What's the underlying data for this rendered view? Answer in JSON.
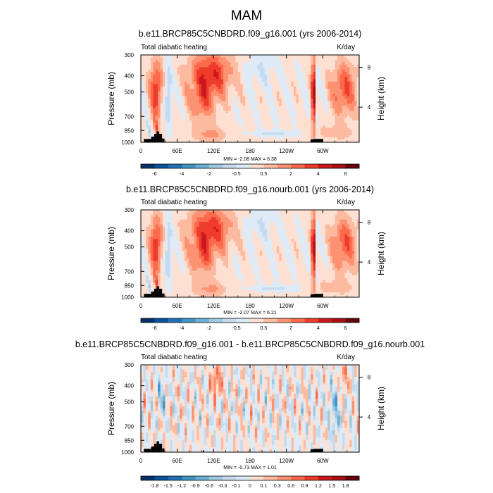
{
  "figure_title": "MAM",
  "chart_data": [
    {
      "type": "heatmap",
      "title": "b.e11.BRCP85C5CNBDRD.f09_g16.001 (yrs 2006-2014)",
      "left_label": "Total diabatic heating",
      "units": "K/day",
      "ylabel": "Pressure (mb)",
      "ylabel_right": "Height (km)",
      "x_ticks": [
        "0",
        "60E",
        "120E",
        "180",
        "120W",
        "60W"
      ],
      "x_tick_lon": [
        0,
        60,
        120,
        180,
        240,
        300
      ],
      "xlim": [
        0,
        360
      ],
      "y_ticks": [
        "300",
        "400",
        "500",
        "700",
        "850",
        "1000"
      ],
      "y_tick_p": [
        300,
        400,
        500,
        700,
        850,
        1000
      ],
      "ylim": [
        1000,
        300
      ],
      "right_ticks": [
        "8",
        "4"
      ],
      "right_tick_p": [
        356,
        616
      ],
      "min_max": "MIN = -2.08  MAX =  6.38",
      "colorbar": {
        "colors": [
          "#08306b",
          "#08519c",
          "#2171b5",
          "#4292c6",
          "#6baed6",
          "#9ecae1",
          "#c6dbef",
          "#deebf7",
          "#fee0d2",
          "#fcbba1",
          "#fc9272",
          "#fb6a4a",
          "#ef3b2c",
          "#cb181d",
          "#a50f15",
          "#67000d"
        ],
        "labels": [
          "-6",
          "-4",
          "-2",
          "-0.5",
          "0.5",
          "2",
          "4",
          "6"
        ]
      },
      "scale": 1
    },
    {
      "type": "heatmap",
      "title": "b.e11.BRCP85C5CNBDRD.f09_g16.nourb.001 (yrs 2006-2014)",
      "left_label": "Total diabatic heating",
      "units": "K/day",
      "ylabel": "Pressure (mb)",
      "ylabel_right": "Height (km)",
      "x_ticks": [
        "0",
        "60E",
        "120E",
        "180",
        "120W",
        "60W"
      ],
      "x_tick_lon": [
        0,
        60,
        120,
        180,
        240,
        300
      ],
      "xlim": [
        0,
        360
      ],
      "y_ticks": [
        "300",
        "400",
        "500",
        "700",
        "850",
        "1000"
      ],
      "y_tick_p": [
        300,
        400,
        500,
        700,
        850,
        1000
      ],
      "ylim": [
        1000,
        300
      ],
      "right_ticks": [
        "8",
        "4"
      ],
      "right_tick_p": [
        356,
        616
      ],
      "min_max": "MIN = -2.07  MAX =  6.21",
      "colorbar": {
        "colors": [
          "#08306b",
          "#08519c",
          "#2171b5",
          "#4292c6",
          "#6baed6",
          "#9ecae1",
          "#c6dbef",
          "#deebf7",
          "#fee0d2",
          "#fcbba1",
          "#fc9272",
          "#fb6a4a",
          "#ef3b2c",
          "#cb181d",
          "#a50f15",
          "#67000d"
        ],
        "labels": [
          "-6",
          "-4",
          "-2",
          "-0.5",
          "0.5",
          "2",
          "4",
          "6"
        ]
      },
      "scale": 0.98
    },
    {
      "type": "heatmap",
      "title": "b.e11.BRCP85C5CNBDRD.f09_g16.001 - b.e11.BRCP85C5CNBDRD.f09_g16.nourb.001",
      "left_label": "Total diabatic heating",
      "units": "K/day",
      "ylabel": "Pressure (mb)",
      "ylabel_right": "Height (km)",
      "x_ticks": [
        "0",
        "60E",
        "120E",
        "180",
        "120W",
        "60W"
      ],
      "x_tick_lon": [
        0,
        60,
        120,
        180,
        240,
        300
      ],
      "xlim": [
        0,
        360
      ],
      "y_ticks": [
        "300",
        "400",
        "500",
        "700",
        "850",
        "1000"
      ],
      "y_tick_p": [
        300,
        400,
        500,
        700,
        850,
        1000
      ],
      "ylim": [
        1000,
        300
      ],
      "right_ticks": [
        "8",
        "4"
      ],
      "right_tick_p": [
        356,
        616
      ],
      "min_max": "MIN = -0.73  MAX =  1.01",
      "colorbar": {
        "colors": [
          "#08306b",
          "#08519c",
          "#2171b5",
          "#4292c6",
          "#6baed6",
          "#9ecae1",
          "#c6dbef",
          "#deebf7",
          "#fee0d2",
          "#fcbba1",
          "#fc9272",
          "#fb6a4a",
          "#ef3b2c",
          "#cb181d",
          "#a50f15",
          "#67000d"
        ],
        "labels": [
          "-1.8",
          "-1.5",
          "-1.2",
          "-0.9",
          "-0.6",
          "-0.3",
          "-0.1",
          "0",
          "0.1",
          "0.3",
          "0.6",
          "0.9",
          "1.2",
          "1.5",
          "1.8"
        ]
      },
      "scale": 0.6
    }
  ]
}
